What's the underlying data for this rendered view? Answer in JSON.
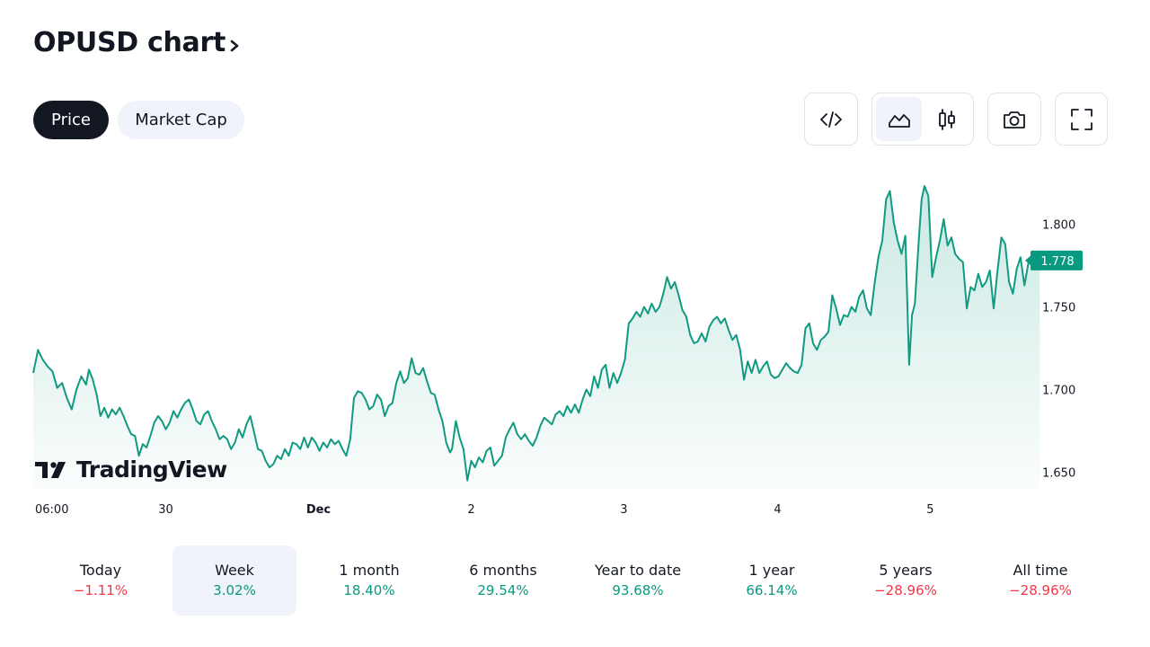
{
  "header": {
    "title": "OPUSD chart"
  },
  "tabs": [
    {
      "label": "Price",
      "active": true
    },
    {
      "label": "Market Cap",
      "active": false
    }
  ],
  "toolbar": {
    "buttons": [
      "embed-code-icon",
      "area-chart-icon",
      "candlestick-icon",
      "camera-icon",
      "fullscreen-icon"
    ],
    "active_chart_style": "area"
  },
  "watermark": {
    "brand": "TradingView"
  },
  "colors": {
    "line": "#119a82",
    "fill_top": "#d2efe8",
    "positive": "#089981",
    "negative": "#f23645",
    "price_badge": "#089981"
  },
  "chart_data": {
    "type": "area",
    "title": "OPUSD",
    "y_axis": {
      "ticks": [
        "1.800",
        "1.750",
        "1.700",
        "1.650"
      ],
      "range": [
        1.64,
        1.835
      ]
    },
    "x_axis": {
      "ticks": [
        {
          "label": "06:00",
          "pos": 0.0,
          "bold": false
        },
        {
          "label": "30",
          "pos": 0.138,
          "bold": false
        },
        {
          "label": "Dec",
          "pos": 0.297,
          "bold": true
        },
        {
          "label": "2",
          "pos": 0.456,
          "bold": false
        },
        {
          "label": "3",
          "pos": 0.615,
          "bold": false
        },
        {
          "label": "4",
          "pos": 0.775,
          "bold": false
        },
        {
          "label": "5",
          "pos": 0.934,
          "bold": false
        }
      ]
    },
    "last_price": "1.778",
    "series": [
      {
        "values": [
          [
            0.0,
            1.71
          ],
          [
            0.005,
            1.724
          ],
          [
            0.01,
            1.718
          ],
          [
            0.015,
            1.714
          ],
          [
            0.02,
            1.711
          ],
          [
            0.025,
            1.701
          ],
          [
            0.03,
            1.704
          ],
          [
            0.035,
            1.695
          ],
          [
            0.04,
            1.688
          ],
          [
            0.045,
            1.7
          ],
          [
            0.05,
            1.708
          ],
          [
            0.055,
            1.703
          ],
          [
            0.058,
            1.712
          ],
          [
            0.062,
            1.706
          ],
          [
            0.066,
            1.697
          ],
          [
            0.07,
            1.684
          ],
          [
            0.074,
            1.689
          ],
          [
            0.078,
            1.683
          ],
          [
            0.082,
            1.688
          ],
          [
            0.086,
            1.685
          ],
          [
            0.09,
            1.689
          ],
          [
            0.094,
            1.684
          ],
          [
            0.098,
            1.678
          ],
          [
            0.102,
            1.673
          ],
          [
            0.106,
            1.672
          ],
          [
            0.11,
            1.66
          ],
          [
            0.114,
            1.667
          ],
          [
            0.118,
            1.665
          ],
          [
            0.122,
            1.672
          ],
          [
            0.126,
            1.68
          ],
          [
            0.13,
            1.684
          ],
          [
            0.134,
            1.681
          ],
          [
            0.138,
            1.676
          ],
          [
            0.142,
            1.68
          ],
          [
            0.146,
            1.687
          ],
          [
            0.15,
            1.683
          ],
          [
            0.154,
            1.688
          ],
          [
            0.158,
            1.692
          ],
          [
            0.162,
            1.694
          ],
          [
            0.166,
            1.688
          ],
          [
            0.17,
            1.681
          ],
          [
            0.174,
            1.679
          ],
          [
            0.178,
            1.685
          ],
          [
            0.182,
            1.687
          ],
          [
            0.186,
            1.681
          ],
          [
            0.19,
            1.676
          ],
          [
            0.194,
            1.67
          ],
          [
            0.198,
            1.672
          ],
          [
            0.202,
            1.67
          ],
          [
            0.206,
            1.664
          ],
          [
            0.21,
            1.668
          ],
          [
            0.214,
            1.676
          ],
          [
            0.218,
            1.671
          ],
          [
            0.222,
            1.679
          ],
          [
            0.226,
            1.684
          ],
          [
            0.23,
            1.674
          ],
          [
            0.234,
            1.664
          ],
          [
            0.238,
            1.663
          ],
          [
            0.242,
            1.657
          ],
          [
            0.246,
            1.653
          ],
          [
            0.25,
            1.655
          ],
          [
            0.254,
            1.66
          ],
          [
            0.258,
            1.658
          ],
          [
            0.262,
            1.664
          ],
          [
            0.266,
            1.66
          ],
          [
            0.27,
            1.668
          ],
          [
            0.274,
            1.667
          ],
          [
            0.278,
            1.664
          ],
          [
            0.282,
            1.671
          ],
          [
            0.286,
            1.665
          ],
          [
            0.29,
            1.671
          ],
          [
            0.294,
            1.668
          ],
          [
            0.298,
            1.663
          ],
          [
            0.302,
            1.668
          ],
          [
            0.306,
            1.665
          ],
          [
            0.31,
            1.67
          ],
          [
            0.314,
            1.667
          ],
          [
            0.318,
            1.669
          ],
          [
            0.322,
            1.664
          ],
          [
            0.326,
            1.66
          ],
          [
            0.33,
            1.67
          ],
          [
            0.334,
            1.695
          ],
          [
            0.338,
            1.699
          ],
          [
            0.342,
            1.698
          ],
          [
            0.346,
            1.694
          ],
          [
            0.35,
            1.688
          ],
          [
            0.354,
            1.69
          ],
          [
            0.358,
            1.697
          ],
          [
            0.362,
            1.694
          ],
          [
            0.366,
            1.684
          ],
          [
            0.37,
            1.69
          ],
          [
            0.374,
            1.692
          ],
          [
            0.378,
            1.704
          ],
          [
            0.382,
            1.711
          ],
          [
            0.386,
            1.704
          ],
          [
            0.39,
            1.707
          ],
          [
            0.394,
            1.719
          ],
          [
            0.398,
            1.71
          ],
          [
            0.402,
            1.709
          ],
          [
            0.406,
            1.713
          ],
          [
            0.41,
            1.705
          ],
          [
            0.414,
            1.698
          ],
          [
            0.418,
            1.697
          ],
          [
            0.422,
            1.688
          ],
          [
            0.426,
            1.681
          ],
          [
            0.43,
            1.668
          ],
          [
            0.434,
            1.662
          ],
          [
            0.436,
            1.664
          ],
          [
            0.44,
            1.681
          ],
          [
            0.444,
            1.671
          ],
          [
            0.448,
            1.664
          ],
          [
            0.452,
            1.645
          ],
          [
            0.456,
            1.657
          ],
          [
            0.46,
            1.653
          ],
          [
            0.464,
            1.659
          ],
          [
            0.468,
            1.656
          ],
          [
            0.472,
            1.663
          ],
          [
            0.476,
            1.665
          ],
          [
            0.48,
            1.654
          ],
          [
            0.484,
            1.657
          ],
          [
            0.488,
            1.66
          ],
          [
            0.492,
            1.671
          ],
          [
            0.496,
            1.676
          ],
          [
            0.5,
            1.68
          ],
          [
            0.504,
            1.673
          ],
          [
            0.508,
            1.67
          ],
          [
            0.512,
            1.673
          ],
          [
            0.516,
            1.669
          ],
          [
            0.52,
            1.666
          ],
          [
            0.524,
            1.671
          ],
          [
            0.528,
            1.678
          ],
          [
            0.532,
            1.683
          ],
          [
            0.536,
            1.681
          ],
          [
            0.54,
            1.679
          ],
          [
            0.544,
            1.685
          ],
          [
            0.548,
            1.687
          ],
          [
            0.552,
            1.684
          ],
          [
            0.556,
            1.69
          ],
          [
            0.56,
            1.686
          ],
          [
            0.564,
            1.691
          ],
          [
            0.568,
            1.686
          ],
          [
            0.572,
            1.694
          ],
          [
            0.576,
            1.7
          ],
          [
            0.58,
            1.696
          ],
          [
            0.584,
            1.708
          ],
          [
            0.588,
            1.701
          ],
          [
            0.592,
            1.712
          ],
          [
            0.596,
            1.715
          ],
          [
            0.6,
            1.701
          ],
          [
            0.604,
            1.71
          ],
          [
            0.608,
            1.704
          ],
          [
            0.612,
            1.71
          ],
          [
            0.616,
            1.718
          ],
          [
            0.62,
            1.74
          ],
          [
            0.624,
            1.743
          ],
          [
            0.628,
            1.747
          ],
          [
            0.632,
            1.744
          ],
          [
            0.636,
            1.75
          ],
          [
            0.64,
            1.746
          ],
          [
            0.644,
            1.752
          ],
          [
            0.648,
            1.747
          ],
          [
            0.652,
            1.75
          ],
          [
            0.656,
            1.758
          ],
          [
            0.66,
            1.768
          ],
          [
            0.664,
            1.761
          ],
          [
            0.668,
            1.765
          ],
          [
            0.672,
            1.757
          ],
          [
            0.676,
            1.748
          ],
          [
            0.68,
            1.744
          ],
          [
            0.684,
            1.733
          ],
          [
            0.688,
            1.728
          ],
          [
            0.692,
            1.729
          ],
          [
            0.696,
            1.734
          ],
          [
            0.7,
            1.729
          ],
          [
            0.704,
            1.738
          ],
          [
            0.708,
            1.742
          ],
          [
            0.712,
            1.744
          ],
          [
            0.716,
            1.74
          ],
          [
            0.72,
            1.743
          ],
          [
            0.724,
            1.736
          ],
          [
            0.728,
            1.73
          ],
          [
            0.732,
            1.733
          ],
          [
            0.736,
            1.724
          ],
          [
            0.74,
            1.706
          ],
          [
            0.744,
            1.717
          ],
          [
            0.748,
            1.71
          ],
          [
            0.752,
            1.718
          ],
          [
            0.756,
            1.71
          ],
          [
            0.76,
            1.714
          ],
          [
            0.764,
            1.717
          ],
          [
            0.768,
            1.709
          ],
          [
            0.772,
            1.707
          ],
          [
            0.776,
            1.708
          ],
          [
            0.78,
            1.712
          ],
          [
            0.784,
            1.716
          ],
          [
            0.788,
            1.713
          ],
          [
            0.792,
            1.711
          ],
          [
            0.796,
            1.71
          ],
          [
            0.8,
            1.715
          ],
          [
            0.804,
            1.737
          ],
          [
            0.808,
            1.74
          ],
          [
            0.812,
            1.728
          ],
          [
            0.816,
            1.724
          ],
          [
            0.82,
            1.73
          ],
          [
            0.824,
            1.732
          ],
          [
            0.828,
            1.735
          ],
          [
            0.832,
            1.757
          ],
          [
            0.836,
            1.749
          ],
          [
            0.84,
            1.739
          ],
          [
            0.844,
            1.745
          ],
          [
            0.848,
            1.744
          ],
          [
            0.852,
            1.75
          ],
          [
            0.856,
            1.747
          ],
          [
            0.86,
            1.756
          ],
          [
            0.864,
            1.76
          ],
          [
            0.868,
            1.749
          ],
          [
            0.872,
            1.745
          ],
          [
            0.876,
            1.764
          ],
          [
            0.88,
            1.78
          ],
          [
            0.884,
            1.79
          ],
          [
            0.888,
            1.815
          ],
          [
            0.892,
            1.82
          ],
          [
            0.896,
            1.801
          ],
          [
            0.9,
            1.79
          ],
          [
            0.904,
            1.782
          ],
          [
            0.908,
            1.793
          ],
          [
            0.912,
            1.715
          ],
          [
            0.915,
            1.745
          ],
          [
            0.918,
            1.752
          ],
          [
            0.922,
            1.79
          ],
          [
            0.925,
            1.815
          ],
          [
            0.928,
            1.823
          ],
          [
            0.932,
            1.817
          ],
          [
            0.936,
            1.768
          ],
          [
            0.94,
            1.78
          ],
          [
            0.944,
            1.79
          ],
          [
            0.948,
            1.803
          ],
          [
            0.952,
            1.787
          ],
          [
            0.956,
            1.792
          ],
          [
            0.96,
            1.782
          ],
          [
            0.964,
            1.779
          ],
          [
            0.968,
            1.777
          ],
          [
            0.972,
            1.749
          ],
          [
            0.976,
            1.762
          ],
          [
            0.98,
            1.76
          ],
          [
            0.984,
            1.77
          ],
          [
            0.988,
            1.762
          ],
          [
            0.992,
            1.765
          ],
          [
            0.996,
            1.772
          ],
          [
            1.0,
            1.749
          ],
          [
            1.004,
            1.772
          ],
          [
            1.008,
            1.792
          ],
          [
            1.012,
            1.788
          ],
          [
            1.016,
            1.765
          ],
          [
            1.02,
            1.758
          ],
          [
            1.024,
            1.773
          ],
          [
            1.028,
            1.78
          ],
          [
            1.032,
            1.763
          ],
          [
            1.036,
            1.776
          ],
          [
            1.04,
            1.782
          ],
          [
            1.044,
            1.78
          ],
          [
            1.048,
            1.779
          ]
        ]
      }
    ]
  },
  "periods": [
    {
      "label": "Today",
      "value": "−1.11%",
      "trend": "neg",
      "active": false
    },
    {
      "label": "Week",
      "value": "3.02%",
      "trend": "pos",
      "active": true
    },
    {
      "label": "1 month",
      "value": "18.40%",
      "trend": "pos",
      "active": false
    },
    {
      "label": "6 months",
      "value": "29.54%",
      "trend": "pos",
      "active": false
    },
    {
      "label": "Year to date",
      "value": "93.68%",
      "trend": "pos",
      "active": false
    },
    {
      "label": "1 year",
      "value": "66.14%",
      "trend": "pos",
      "active": false
    },
    {
      "label": "5 years",
      "value": "−28.96%",
      "trend": "neg",
      "active": false
    },
    {
      "label": "All time",
      "value": "−28.96%",
      "trend": "neg",
      "active": false
    }
  ]
}
